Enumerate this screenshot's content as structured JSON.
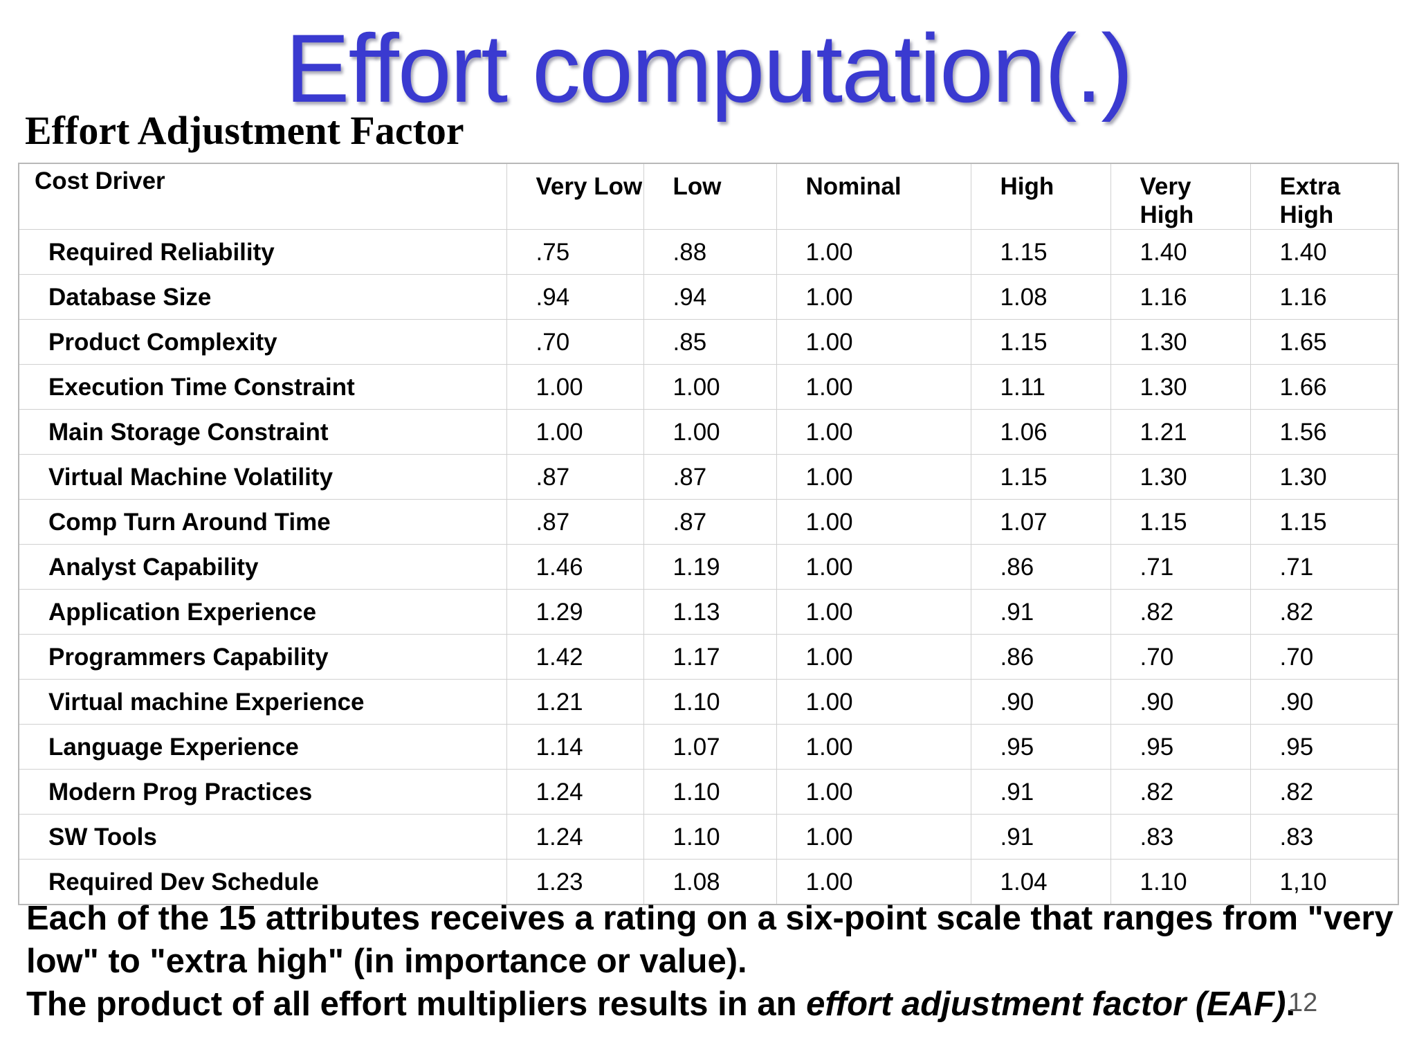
{
  "slide": {
    "title": "Effort computation(.)",
    "subtitle": "Effort Adjustment Factor",
    "footer_line1": "Each of the 15 attributes receives a rating on a six-point scale that ranges from \"very low\" to \"extra high\" (in importance or value).",
    "footer_line2_prefix": "The product of all effort multipliers results in an ",
    "footer_line2_em": "effort adjustment factor (EAF)",
    "footer_line2_suffix": ".",
    "page_number": "12"
  },
  "table": {
    "headers": [
      "Cost Driver",
      "Very Low",
      "Low",
      "Nominal",
      "High",
      "Very High",
      "Extra High"
    ],
    "rows": [
      [
        "Required Reliability",
        ".75",
        ".88",
        "1.00",
        "1.15",
        "1.40",
        "1.40"
      ],
      [
        "Database Size",
        ".94",
        ".94",
        "1.00",
        "1.08",
        "1.16",
        "1.16"
      ],
      [
        "Product Complexity",
        ".70",
        ".85",
        "1.00",
        "1.15",
        "1.30",
        "1.65"
      ],
      [
        "Execution Time Constraint",
        "1.00",
        "1.00",
        "1.00",
        "1.11",
        "1.30",
        "1.66"
      ],
      [
        "Main Storage Constraint",
        "1.00",
        "1.00",
        "1.00",
        "1.06",
        "1.21",
        "1.56"
      ],
      [
        "Virtual Machine Volatility",
        ".87",
        ".87",
        "1.00",
        "1.15",
        "1.30",
        "1.30"
      ],
      [
        "Comp Turn Around Time",
        ".87",
        ".87",
        "1.00",
        "1.07",
        "1.15",
        "1.15"
      ],
      [
        "Analyst Capability",
        "1.46",
        "1.19",
        "1.00",
        ".86",
        ".71",
        ".71"
      ],
      [
        "Application Experience",
        "1.29",
        "1.13",
        "1.00",
        ".91",
        ".82",
        ".82"
      ],
      [
        "Programmers Capability",
        "1.42",
        "1.17",
        "1.00",
        ".86",
        ".70",
        ".70"
      ],
      [
        "Virtual machine Experience",
        "1.21",
        "1.10",
        "1.00",
        ".90",
        ".90",
        ".90"
      ],
      [
        "Language Experience",
        "1.14",
        "1.07",
        "1.00",
        ".95",
        ".95",
        ".95"
      ],
      [
        "Modern Prog Practices",
        "1.24",
        "1.10",
        "1.00",
        ".91",
        ".82",
        ".82"
      ],
      [
        "SW Tools",
        "1.24",
        "1.10",
        "1.00",
        ".91",
        ".83",
        ".83"
      ],
      [
        "Required Dev Schedule",
        "1.23",
        "1.08",
        "1.00",
        "1.04",
        "1.10",
        "1,10"
      ]
    ]
  },
  "colors": {
    "title": "#3a3ad0",
    "table_border": "#d0d0d0"
  }
}
